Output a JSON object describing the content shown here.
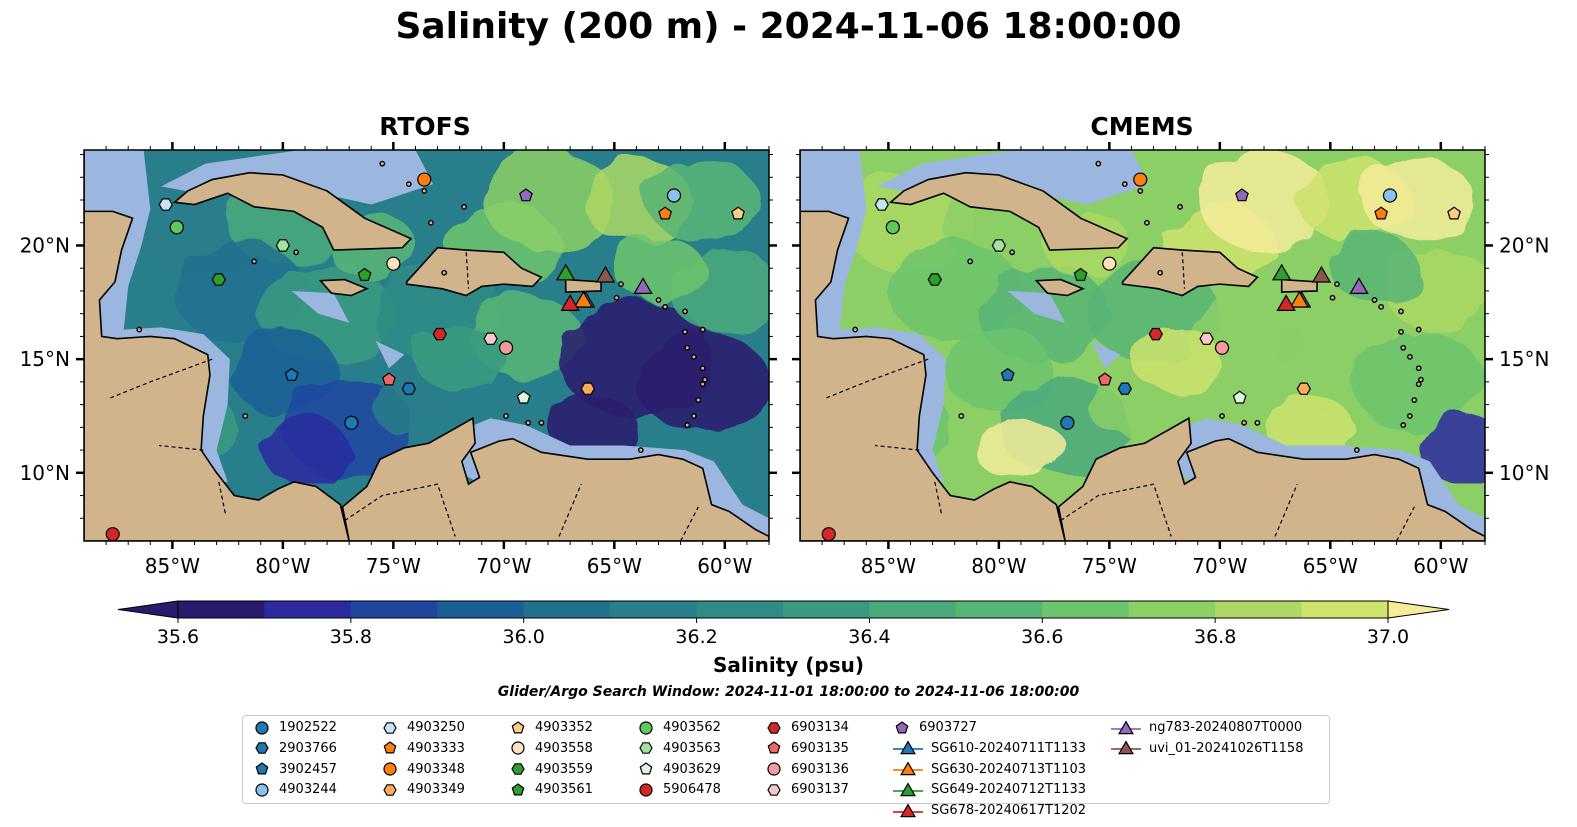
{
  "title": "Salinity (200 m) - 2024-11-06 18:00:00",
  "panels": [
    {
      "title": "RTOFS"
    },
    {
      "title": "CMEMS"
    }
  ],
  "lon_ticks": [
    "85°W",
    "80°W",
    "75°W",
    "70°W",
    "65°W",
    "60°W"
  ],
  "lat_ticks": [
    "20°N",
    "15°N",
    "10°N"
  ],
  "colorbar": {
    "ticks": [
      "35.6",
      "35.8",
      "36.0",
      "36.2",
      "36.4",
      "36.6",
      "36.8",
      "37.0"
    ],
    "label": "Salinity (psu)",
    "colors": [
      "#2a1a6e",
      "#2c2aa0",
      "#1f47a0",
      "#1b5f97",
      "#21718f",
      "#297e8b",
      "#2f8c86",
      "#3b9b81",
      "#4aaa7b",
      "#58b575",
      "#6cc46c",
      "#8ccf66",
      "#acd863",
      "#cde36c",
      "#f5ec9a"
    ]
  },
  "search_window": "Glider/Argo Search Window: 2024-11-01 18:00:00 to 2024-11-06 18:00:00",
  "map": {
    "lon_range": [
      -89,
      -58
    ],
    "lat_range": [
      7,
      24.2
    ],
    "land_color": "#d2b48c",
    "shallow_color": "#9bb7e0",
    "deep_color": "#2a1a6e"
  },
  "platforms": [
    {
      "name": "1902522",
      "marker": "circle",
      "color": "#1f77b4",
      "lon": -76.9,
      "lat": 12.2
    },
    {
      "name": "2903766",
      "marker": "hexagon",
      "color": "#1f77b4",
      "lon": -74.3,
      "lat": 13.7
    },
    {
      "name": "3902457",
      "marker": "pentagon",
      "color": "#1f77b4",
      "lon": -79.6,
      "lat": 14.3
    },
    {
      "name": "4903244",
      "marker": "circle",
      "color": "#89c2ee",
      "lon": -62.3,
      "lat": 22.2
    },
    {
      "name": "4903250",
      "marker": "hexagon",
      "color": "#c6e4f7",
      "lon": -85.3,
      "lat": 21.8
    },
    {
      "name": "4903333",
      "marker": "pentagon",
      "color": "#ff7f0e",
      "lon": -62.7,
      "lat": 21.4
    },
    {
      "name": "4903348",
      "marker": "circle",
      "color": "#ff7f0e",
      "lon": -73.6,
      "lat": 22.9
    },
    {
      "name": "4903349",
      "marker": "hexagon",
      "color": "#ffaa5c",
      "lon": -66.2,
      "lat": 13.7
    },
    {
      "name": "4903352",
      "marker": "pentagon",
      "color": "#ffcc88",
      "lon": -59.4,
      "lat": 21.4
    },
    {
      "name": "4903558",
      "marker": "circle",
      "color": "#ffe0c0",
      "lon": -75.0,
      "lat": 19.2
    },
    {
      "name": "4903559",
      "marker": "hexagon",
      "color": "#2ca02c",
      "lon": -82.9,
      "lat": 18.5
    },
    {
      "name": "4903561",
      "marker": "pentagon",
      "color": "#2ca02c",
      "lon": -76.3,
      "lat": 18.7
    },
    {
      "name": "4903562",
      "marker": "circle",
      "color": "#5fc85f",
      "lon": -84.8,
      "lat": 20.8
    },
    {
      "name": "4903563",
      "marker": "hexagon",
      "color": "#a2e3a2",
      "lon": -80.0,
      "lat": 20.0
    },
    {
      "name": "4903629",
      "marker": "pentagon",
      "color": "#ddf5dd",
      "lon": -69.1,
      "lat": 13.3
    },
    {
      "name": "5906478",
      "marker": "circle",
      "color": "#d62728",
      "lon": -87.7,
      "lat": 7.3
    },
    {
      "name": "6903134",
      "marker": "hexagon",
      "color": "#d62728",
      "lon": -72.9,
      "lat": 16.1
    },
    {
      "name": "6903135",
      "marker": "pentagon",
      "color": "#f06767",
      "lon": -75.2,
      "lat": 14.1
    },
    {
      "name": "6903136",
      "marker": "circle",
      "color": "#f49a9a",
      "lon": -69.9,
      "lat": 15.5
    },
    {
      "name": "6903137",
      "marker": "hexagon",
      "color": "#f9c9c9",
      "lon": -70.6,
      "lat": 15.9
    },
    {
      "name": "6903727",
      "marker": "pentagon",
      "color": "#9467bd",
      "lon": -69.0,
      "lat": 22.2
    },
    {
      "name": "SG610-20240711T1133",
      "marker": "triangle",
      "color": "#1f77b4",
      "lon": -66.3,
      "lat": 17.6
    },
    {
      "name": "SG630-20240713T1103",
      "marker": "triangle",
      "color": "#ff7f0e",
      "lon": -66.4,
      "lat": 17.6
    },
    {
      "name": "SG649-20240712T1133",
      "marker": "triangle",
      "color": "#2ca02c",
      "lon": -67.2,
      "lat": 18.8
    },
    {
      "name": "SG678-20240617T1202",
      "marker": "triangle",
      "color": "#d62728",
      "lon": -67.0,
      "lat": 17.45
    },
    {
      "name": "ng783-20240807T0000",
      "marker": "triangle",
      "color": "#9467bd",
      "lon": -63.7,
      "lat": 18.2
    },
    {
      "name": "uvi_01-20241026T1158",
      "marker": "triangle",
      "color": "#8c564b",
      "lon": -65.4,
      "lat": 18.7
    }
  ]
}
